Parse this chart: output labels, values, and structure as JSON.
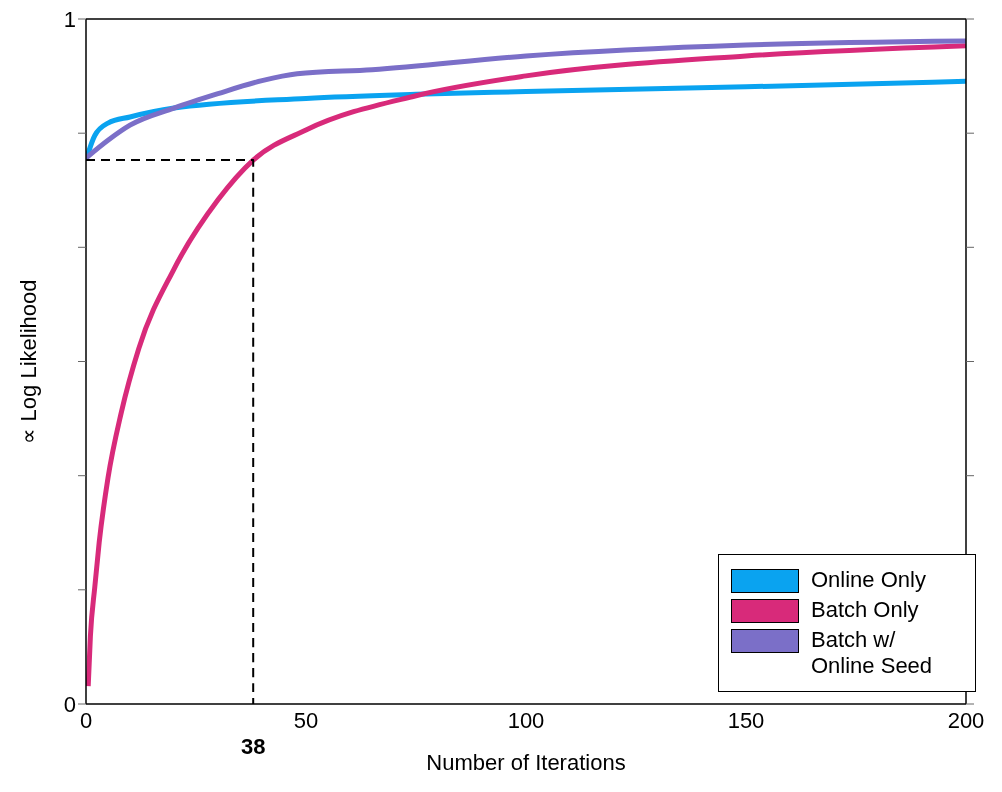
{
  "chart_data": {
    "type": "line",
    "xlabel": "Number of Iterations",
    "ylabel": "∝ Log Likelihood",
    "xlim": [
      0,
      200
    ],
    "xticks": [
      0,
      50,
      100,
      150,
      200
    ],
    "ylim": [
      0,
      1
    ],
    "yticks": [
      0,
      {
        "value": 0.1667,
        "label": null
      },
      {
        "value": 0.3333,
        "label": null
      },
      {
        "value": 0.5,
        "label": null
      },
      {
        "value": 0.6667,
        "label": null
      },
      {
        "value": 0.8333,
        "label": null
      },
      1
    ],
    "grid": false,
    "legend": "bottom right",
    "marker": "none",
    "line_style": "solid",
    "annotations": [
      {
        "text": "38",
        "x": 38,
        "y": 0
      }
    ],
    "series": [
      {
        "name": "Online Only",
        "color": "#0aa3f0",
        "x": [
          0,
          2,
          5,
          10,
          20,
          50,
          75,
          100,
          150,
          200
        ],
        "values": [
          0.794,
          0.83,
          0.848,
          0.857,
          0.87,
          0.884,
          0.89,
          0.894,
          0.901,
          0.909
        ]
      },
      {
        "name": "Batch Only",
        "color": "#d82a7a",
        "x": [
          0.5,
          1,
          2,
          3,
          5,
          8,
          12,
          20,
          30,
          38,
          50,
          75,
          100,
          150,
          200
        ],
        "values": [
          0.026,
          0.099,
          0.171,
          0.236,
          0.33,
          0.425,
          0.519,
          0.635,
          0.736,
          0.794,
          0.838,
          0.888,
          0.917,
          0.946,
          0.961
        ]
      },
      {
        "name": "Batch w/ Online Seed",
        "color": "#7b6fc8",
        "x": [
          0,
          5,
          10,
          20,
          30,
          40,
          48,
          65,
          100,
          150,
          200
        ],
        "values": [
          0.797,
          0.823,
          0.845,
          0.87,
          0.891,
          0.91,
          0.92,
          0.926,
          0.946,
          0.962,
          0.968
        ]
      },
      {
        "color": "#000000",
        "line_style": "dashed",
        "x": [
          0,
          38,
          38
        ],
        "values": [
          0.794,
          0.794,
          0
        ]
      }
    ]
  }
}
